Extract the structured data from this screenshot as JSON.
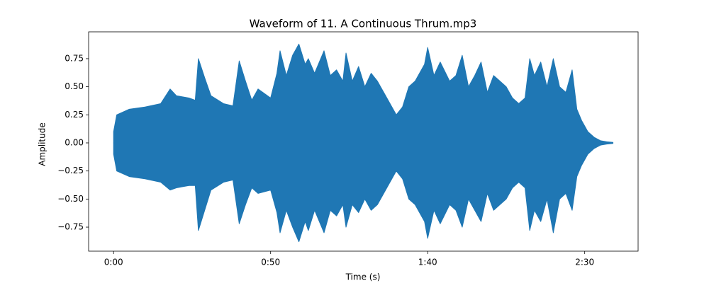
{
  "chart_data": {
    "type": "waveform",
    "title": "Waveform of 11. A Continuous Thrum.mp3",
    "x_label": "Time (s)",
    "y_label": "Amplitude",
    "color": "#1f77b4",
    "x": [
      0,
      1,
      5,
      10,
      15,
      18,
      20,
      24,
      26,
      27,
      29,
      31,
      35,
      38,
      40,
      42,
      44,
      46,
      50,
      52,
      53,
      55,
      57,
      59,
      61,
      62,
      64,
      67,
      69,
      71,
      73,
      74,
      76,
      78,
      80,
      82,
      84,
      86,
      88,
      90,
      92,
      94,
      96,
      99,
      100,
      102,
      104,
      107,
      109,
      111,
      113,
      115,
      117,
      119,
      121,
      123,
      125,
      127,
      129,
      131,
      132.5,
      134,
      136,
      138,
      140,
      142,
      144,
      146,
      147.5,
      149,
      151,
      153,
      155,
      157,
      159
    ],
    "upper": [
      0.1,
      0.25,
      0.3,
      0.32,
      0.35,
      0.48,
      0.42,
      0.4,
      0.38,
      0.75,
      0.58,
      0.42,
      0.35,
      0.33,
      0.73,
      0.55,
      0.38,
      0.48,
      0.4,
      0.62,
      0.82,
      0.6,
      0.78,
      0.88,
      0.7,
      0.75,
      0.62,
      0.82,
      0.6,
      0.65,
      0.55,
      0.8,
      0.55,
      0.68,
      0.5,
      0.62,
      0.55,
      0.45,
      0.35,
      0.25,
      0.32,
      0.5,
      0.55,
      0.7,
      0.85,
      0.6,
      0.72,
      0.55,
      0.6,
      0.78,
      0.5,
      0.6,
      0.72,
      0.45,
      0.6,
      0.55,
      0.5,
      0.4,
      0.35,
      0.4,
      0.75,
      0.6,
      0.72,
      0.5,
      0.75,
      0.5,
      0.45,
      0.65,
      0.3,
      0.2,
      0.1,
      0.05,
      0.02,
      0.01,
      0.005
    ],
    "lower": [
      -0.1,
      -0.25,
      -0.3,
      -0.32,
      -0.35,
      -0.42,
      -0.4,
      -0.38,
      -0.38,
      -0.78,
      -0.6,
      -0.42,
      -0.35,
      -0.33,
      -0.72,
      -0.55,
      -0.4,
      -0.45,
      -0.42,
      -0.62,
      -0.8,
      -0.6,
      -0.75,
      -0.88,
      -0.7,
      -0.78,
      -0.6,
      -0.8,
      -0.6,
      -0.65,
      -0.55,
      -0.75,
      -0.55,
      -0.62,
      -0.5,
      -0.6,
      -0.55,
      -0.45,
      -0.35,
      -0.25,
      -0.32,
      -0.5,
      -0.55,
      -0.7,
      -0.85,
      -0.6,
      -0.72,
      -0.55,
      -0.6,
      -0.75,
      -0.5,
      -0.6,
      -0.7,
      -0.45,
      -0.6,
      -0.55,
      -0.5,
      -0.4,
      -0.35,
      -0.4,
      -0.78,
      -0.6,
      -0.7,
      -0.5,
      -0.8,
      -0.5,
      -0.45,
      -0.6,
      -0.3,
      -0.2,
      -0.1,
      -0.05,
      -0.02,
      -0.01,
      -0.005
    ],
    "xlim": [
      -7.95,
      167
    ],
    "xticks": [
      {
        "value": 0,
        "label": "0:00"
      },
      {
        "value": 50,
        "label": "0:50"
      },
      {
        "value": 100,
        "label": "1:40"
      },
      {
        "value": 150,
        "label": "2:30"
      }
    ],
    "ylim": [
      -0.964,
      0.989
    ],
    "yticks": [
      {
        "value": -0.75,
        "label": "−0.75"
      },
      {
        "value": -0.5,
        "label": "−0.50"
      },
      {
        "value": -0.25,
        "label": "−0.25"
      },
      {
        "value": 0,
        "label": "0.00"
      },
      {
        "value": 0.25,
        "label": "0.25"
      },
      {
        "value": 0.5,
        "label": "0.50"
      },
      {
        "value": 0.75,
        "label": "0.75"
      }
    ],
    "grid": false
  }
}
